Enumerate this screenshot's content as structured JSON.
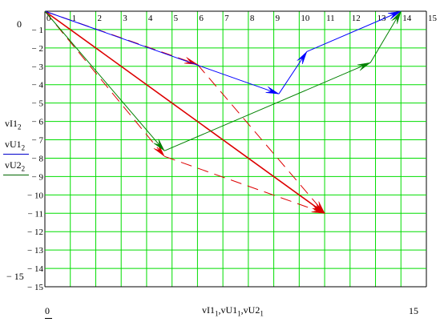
{
  "chart_data": {
    "type": "line",
    "title": "",
    "xlim": [
      0,
      15
    ],
    "ylim": [
      -15,
      0
    ],
    "grid": true,
    "xticks": [
      0,
      1,
      2,
      3,
      4,
      5,
      6,
      7,
      8,
      9,
      10,
      11,
      12,
      13,
      14,
      15
    ],
    "yticks": [
      0,
      -1,
      -2,
      -3,
      -4,
      -5,
      -6,
      -7,
      -8,
      -9,
      -10,
      -11,
      -12,
      -13,
      -14,
      -15
    ],
    "x_outer_labels": {
      "min": "0",
      "max": "15"
    },
    "y_outer_labels": {
      "max": "0",
      "min": "− 15"
    },
    "xlabel": {
      "text": "vI1",
      "parts": [
        {
          "base": "vI1",
          "sub": "1"
        },
        {
          "base": "vU1",
          "sub": "1"
        },
        {
          "base": "vU2",
          "sub": "1"
        }
      ]
    },
    "legend": [
      {
        "base": "vI1",
        "sub": "2",
        "color": "#cc0000",
        "line": false
      },
      {
        "base": "vU1",
        "sub": "2",
        "color": "#0000cc",
        "line": true
      },
      {
        "base": "vU2",
        "sub": "2",
        "color": "#006600",
        "line": true
      }
    ],
    "series": [
      {
        "color": "#dd0000",
        "style": "solid",
        "width": 1.6,
        "x": [
          0,
          11
        ],
        "y": [
          0,
          -11
        ]
      },
      {
        "color": "#dd0000",
        "style": "dashed",
        "width": 1,
        "x": [
          0,
          6,
          11
        ],
        "y": [
          0,
          -2.9,
          -11
        ]
      },
      {
        "color": "#dd0000",
        "style": "dashed",
        "width": 1,
        "x": [
          0,
          4.7,
          11
        ],
        "y": [
          0,
          -7.9,
          -11
        ]
      },
      {
        "color": "#0000ff",
        "style": "solid",
        "width": 1,
        "x": [
          0,
          9.2,
          10.3,
          14
        ],
        "y": [
          0,
          -4.5,
          -2.2,
          0
        ]
      },
      {
        "color": "#008000",
        "style": "solid",
        "width": 1,
        "x": [
          0,
          4.7,
          12.8,
          14
        ],
        "y": [
          0,
          -7.6,
          -2.8,
          0
        ]
      }
    ]
  }
}
